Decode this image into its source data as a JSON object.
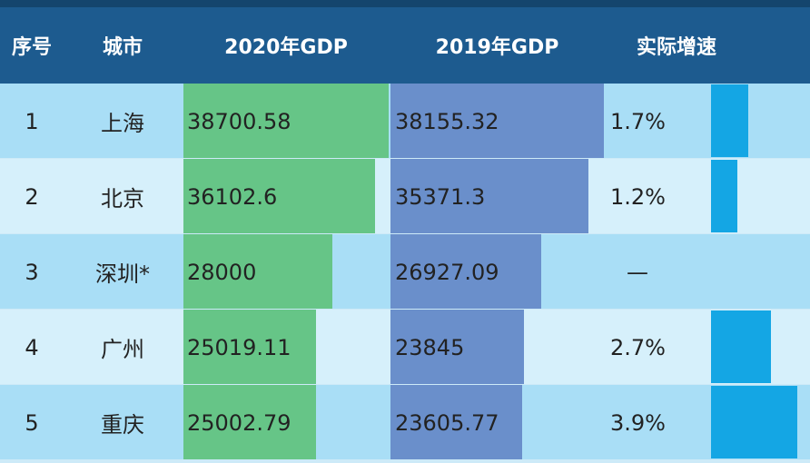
{
  "table": {
    "header": [
      "序号",
      "城市",
      "2020年GDP",
      "2019年GDP",
      "实际增速"
    ],
    "rows": [
      {
        "rank": 1,
        "city": "上海",
        "gdp2020": 38700.58,
        "gdp2019": 38155.32,
        "growth": {
          "value": 1.7,
          "label": "1.7%"
        }
      },
      {
        "rank": 2,
        "city": "北京",
        "gdp2020": 36102.6,
        "gdp2019": 35371.3,
        "growth": {
          "value": 1.2,
          "label": "1.2%"
        }
      },
      {
        "rank": 3,
        "city": "深圳*",
        "gdp2020": 28000,
        "gdp2019": 26927.09,
        "growth": {
          "label": "—"
        }
      },
      {
        "rank": 4,
        "city": "广州",
        "gdp2020": 25019.11,
        "gdp2019": 23845,
        "growth": {
          "value": 2.7,
          "label": "2.7%"
        }
      },
      {
        "rank": 5,
        "city": "重庆",
        "gdp2020": 25002.79,
        "gdp2019": 23605.77,
        "growth": {
          "value": 3.9,
          "label": "3.9%"
        }
      }
    ],
    "colors": {
      "gdp2020": "#66c587",
      "gdp2019": "#6a8fcb",
      "growth": "#14a6e4"
    }
  }
}
